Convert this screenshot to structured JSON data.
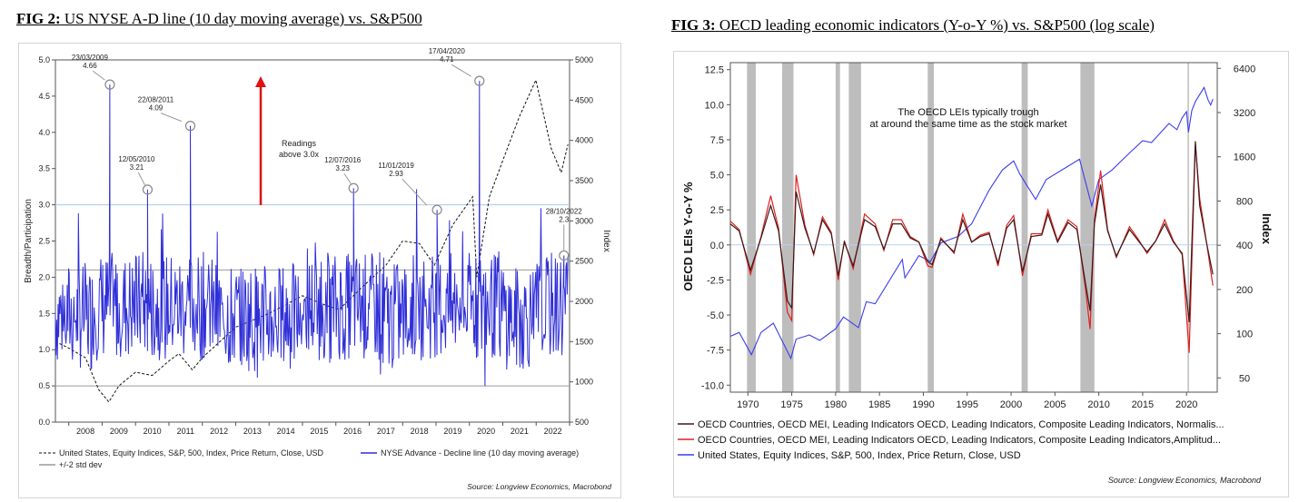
{
  "left": {
    "fig_label": "FIG 2:",
    "title": "US NYSE A-D line (10 day moving average) vs. S&P500",
    "chart_data": {
      "type": "line",
      "ylabel": "Breadth/Participation",
      "y2label": "Index",
      "ylim": [
        0.0,
        5.0
      ],
      "y2lim": [
        500,
        5000
      ],
      "xlim": [
        2007.6,
        2023.0
      ],
      "yticks": [
        "0.0",
        "0.5",
        "1.0",
        "1.5",
        "2.0",
        "2.5",
        "3.0",
        "3.5",
        "4.0",
        "4.5",
        "5.0"
      ],
      "y2ticks": [
        "500",
        "1000",
        "1500",
        "2000",
        "2500",
        "3000",
        "3500",
        "4000",
        "4500",
        "5000"
      ],
      "xticks": [
        "2008",
        "2009",
        "2010",
        "2011",
        "2012",
        "2013",
        "2014",
        "2015",
        "2016",
        "2017",
        "2018",
        "2019",
        "2020",
        "2021",
        "2022"
      ],
      "hlines": [
        {
          "name": "+/-2 std dev",
          "value": 2.1,
          "color": "#999999"
        },
        {
          "name": "+/-2 std dev",
          "value": 0.5,
          "color": "#999999"
        },
        {
          "name": "Readings above 3.0x",
          "value": 3.0,
          "color": "#a8c8e8"
        }
      ],
      "series": [
        {
          "name": "NYSE Advance - Decline line (10 day moving average)",
          "color": "#2f2fd8",
          "axis": "left",
          "x": [
            2007.6,
            2008.7,
            2009.23,
            2009.8,
            2010.36,
            2010.9,
            2011.64,
            2012.3,
            2013.0,
            2014.0,
            2015.0,
            2016.53,
            2017.3,
            2018.2,
            2019.03,
            2019.5,
            2020.3,
            2020.8,
            2021.3,
            2022.0,
            2022.83
          ],
          "y": [
            1.5,
            1.45,
            4.66,
            1.6,
            3.21,
            1.5,
            4.09,
            1.5,
            1.45,
            1.45,
            1.45,
            3.23,
            1.4,
            1.5,
            2.93,
            1.45,
            4.71,
            1.6,
            1.4,
            1.5,
            2.3
          ]
        },
        {
          "name": "United States, Equity Indices, S&P, 500, Index, Price Return, Close, USD",
          "color": "#111111",
          "axis": "right",
          "x": [
            2007.6,
            2008.0,
            2008.5,
            2008.9,
            2009.2,
            2009.5,
            2010.0,
            2010.5,
            2011.0,
            2011.3,
            2011.7,
            2012.0,
            2013.0,
            2014.0,
            2015.0,
            2015.7,
            2016.1,
            2016.8,
            2017.5,
            2018.0,
            2018.5,
            2018.95,
            2019.5,
            2020.1,
            2020.22,
            2020.6,
            2021.0,
            2021.5,
            2021.99,
            2022.45,
            2022.75,
            2022.95
          ],
          "y": [
            1500,
            1420,
            1300,
            900,
            750,
            950,
            1120,
            1080,
            1260,
            1350,
            1150,
            1300,
            1680,
            1850,
            2070,
            1950,
            1900,
            2180,
            2450,
            2750,
            2720,
            2450,
            2950,
            3300,
            2300,
            3300,
            3750,
            4300,
            4750,
            3900,
            3600,
            3950
          ]
        }
      ],
      "annotations": [
        {
          "date": "23/03/2009",
          "value": "4.66",
          "x": 2009.23,
          "y": 4.66
        },
        {
          "date": "12/05/2010",
          "value": "3.21",
          "x": 2010.36,
          "y": 3.21
        },
        {
          "date": "22/08/2011",
          "value": "4.09",
          "x": 2011.64,
          "y": 4.09
        },
        {
          "date": "12/07/2016",
          "value": "3.23",
          "x": 2016.53,
          "y": 3.23
        },
        {
          "date": "11/01/2019",
          "value": "2.93",
          "x": 2019.03,
          "y": 2.93
        },
        {
          "date": "17/04/2020",
          "value": "4.71",
          "x": 2020.3,
          "y": 4.71
        },
        {
          "date": "28/10/2022",
          "value": "2.3",
          "x": 2022.83,
          "y": 2.3
        }
      ],
      "callout": {
        "line1": "Readings",
        "line2": "above 3.0x"
      },
      "legend": [
        "United States, Equity Indices, S&P, 500, Index, Price Return, Close, USD",
        "NYSE Advance - Decline line (10 day moving average)",
        "+/-2 std dev"
      ],
      "source": "Source: Longview Economics, Macrobond"
    }
  },
  "right": {
    "fig_label": "FIG 3:",
    "title": "OECD leading economic indicators (Y-o-Y %) vs. S&P500 (log scale)",
    "chart_data": {
      "type": "line",
      "ylabel": "OECD LEIs Y-o-Y %",
      "y2label": "Index",
      "ylim": [
        -10.5,
        13.0
      ],
      "y2lim": [
        40,
        7000
      ],
      "y2scale": "log",
      "xlim": [
        1968,
        2023.5
      ],
      "yticks": [
        "-10.0",
        "-7.5",
        "-5.0",
        "-2.5",
        "0.0",
        "2.5",
        "5.0",
        "7.5",
        "10.0",
        "12.5"
      ],
      "y2ticks": [
        "50",
        "100",
        "200",
        "400",
        "800",
        "1600",
        "3200",
        "6400"
      ],
      "xticks": [
        "1970",
        "1975",
        "1980",
        "1985",
        "1990",
        "1995",
        "2000",
        "2005",
        "2010",
        "2015",
        "2020"
      ],
      "recessions": [
        [
          1969.9,
          1970.9
        ],
        [
          1973.9,
          1975.2
        ],
        [
          1980.0,
          1980.5
        ],
        [
          1981.5,
          1982.9
        ],
        [
          1990.5,
          1991.2
        ],
        [
          2001.2,
          2001.9
        ],
        [
          2007.9,
          2009.5
        ]
      ],
      "vline_2020": 2020.2,
      "annotation": {
        "line1": "The OECD LEIs typically trough",
        "line2": "at around the same time as the stock market"
      },
      "series": [
        {
          "name": "OECD Countries, OECD MEI, Leading Indicators OECD, Leading Indicators, Composite Leading Indicators, Normalis...",
          "color": "#3a1a1a",
          "axis": "left",
          "x": [
            1968,
            1969,
            1970.3,
            1971.5,
            1972.6,
            1973.5,
            1974.5,
            1975.0,
            1975.5,
            1976.5,
            1977.5,
            1978.5,
            1979.5,
            1980.3,
            1981.0,
            1982.0,
            1983.3,
            1984.5,
            1985.5,
            1986.5,
            1987.5,
            1988.5,
            1989.5,
            1990.5,
            1991.0,
            1992.0,
            1993.5,
            1994.5,
            1995.5,
            1996.5,
            1997.5,
            1998.5,
            1999.5,
            2000.3,
            2001.3,
            2002.3,
            2003.5,
            2004.2,
            2005.3,
            2006.5,
            2007.5,
            2008.5,
            2009.0,
            2009.5,
            2010.2,
            2011.0,
            2012.0,
            2013.5,
            2014.5,
            2015.5,
            2016.5,
            2017.5,
            2018.5,
            2019.5,
            2020.3,
            2021.0,
            2021.5,
            2022.3,
            2023.0
          ],
          "y": [
            1.5,
            1.0,
            -1.8,
            0.5,
            2.8,
            1.0,
            -4.0,
            -4.5,
            3.8,
            1.2,
            -0.6,
            1.8,
            0.8,
            -2.2,
            0.2,
            -1.5,
            1.8,
            1.3,
            -0.3,
            1.5,
            1.5,
            0.5,
            0.2,
            -1.2,
            -1.4,
            0.4,
            -0.5,
            1.8,
            0.2,
            0.6,
            0.8,
            -1.3,
            1.2,
            1.8,
            -1.9,
            0.6,
            0.7,
            2.2,
            0.2,
            1.6,
            1.1,
            -2.8,
            -4.7,
            1.5,
            4.3,
            1.0,
            -0.8,
            1.1,
            0.3,
            -0.5,
            0.3,
            1.5,
            0.2,
            -0.6,
            -5.5,
            7.4,
            2.8,
            0.1,
            -2.1
          ]
        },
        {
          "name": "OECD Countries, OECD MEI, Leading Indicators OECD, Leading Indicators, Composite Leading Indicators,Amplitud...",
          "color": "#e02020",
          "axis": "left",
          "x": [
            1968,
            1969,
            1970.3,
            1971.5,
            1972.6,
            1973.5,
            1974.5,
            1975.0,
            1975.5,
            1976.5,
            1977.5,
            1978.5,
            1979.5,
            1980.3,
            1981.0,
            1982.0,
            1983.3,
            1984.5,
            1985.5,
            1986.5,
            1987.5,
            1988.5,
            1989.5,
            1990.5,
            1991.0,
            1992.0,
            1993.5,
            1994.5,
            1995.5,
            1996.5,
            1997.5,
            1998.5,
            1999.5,
            2000.3,
            2001.3,
            2002.3,
            2003.5,
            2004.2,
            2005.3,
            2006.5,
            2007.5,
            2008.5,
            2009.0,
            2009.5,
            2010.2,
            2011.0,
            2012.0,
            2013.5,
            2014.5,
            2015.5,
            2016.5,
            2017.5,
            2018.5,
            2019.5,
            2020.3,
            2021.0,
            2021.5,
            2022.3,
            2023.0
          ],
          "y": [
            1.7,
            1.1,
            -2.1,
            0.6,
            3.5,
            1.2,
            -4.8,
            -5.4,
            5.0,
            1.4,
            -0.7,
            2.0,
            0.9,
            -2.5,
            0.3,
            -1.7,
            2.2,
            1.5,
            -0.4,
            1.8,
            1.8,
            0.6,
            0.2,
            -1.5,
            -1.6,
            0.5,
            -0.6,
            2.2,
            0.2,
            0.7,
            0.9,
            -1.5,
            1.4,
            2.1,
            -2.2,
            0.8,
            0.8,
            2.5,
            0.3,
            1.8,
            1.3,
            -3.2,
            -6.0,
            1.8,
            5.3,
            1.1,
            -0.9,
            1.3,
            0.4,
            -0.6,
            0.3,
            1.8,
            0.3,
            -0.7,
            -7.7,
            7.2,
            3.3,
            0.1,
            -2.9
          ]
        },
        {
          "name": "United States, Equity Indices, S&P, 500, Index, Price Return, Close, USD",
          "color": "#3c3cf0",
          "axis": "right",
          "x": [
            1968,
            1969,
            1970.4,
            1971.5,
            1972.9,
            1974.9,
            1975.5,
            1977.0,
            1978.2,
            1980.0,
            1980.9,
            1982.6,
            1983.5,
            1984.5,
            1987.6,
            1987.9,
            1989.5,
            1990.8,
            1992.0,
            1994.0,
            1995.5,
            1997.5,
            1999.0,
            2000.3,
            2001.0,
            2002.8,
            2004.0,
            2007.8,
            2009.2,
            2010.0,
            2011.5,
            2013.5,
            2015.0,
            2016.0,
            2018.0,
            2018.9,
            2019.5,
            2020.0,
            2020.22,
            2020.6,
            2021.0,
            2022.0,
            2022.45,
            2022.75,
            2023.0
          ],
          "y": [
            96,
            102,
            72,
            102,
            118,
            68,
            92,
            98,
            90,
            108,
            130,
            110,
            165,
            160,
            320,
            240,
            340,
            310,
            415,
            460,
            560,
            950,
            1300,
            1500,
            1220,
            820,
            1120,
            1540,
            740,
            1120,
            1300,
            1700,
            2060,
            2000,
            2700,
            2450,
            2950,
            3250,
            2350,
            3300,
            3800,
            4750,
            3900,
            3600,
            3950
          ]
        }
      ],
      "legend": [
        "OECD Countries, OECD MEI, Leading Indicators OECD, Leading Indicators, Composite Leading Indicators, Normalis...",
        "OECD Countries, OECD MEI, Leading Indicators OECD, Leading Indicators, Composite Leading Indicators,Amplitud...",
        "United States, Equity Indices, S&P, 500, Index, Price Return, Close, USD"
      ],
      "source": "Source: Longview Economics, Macrobond"
    }
  }
}
